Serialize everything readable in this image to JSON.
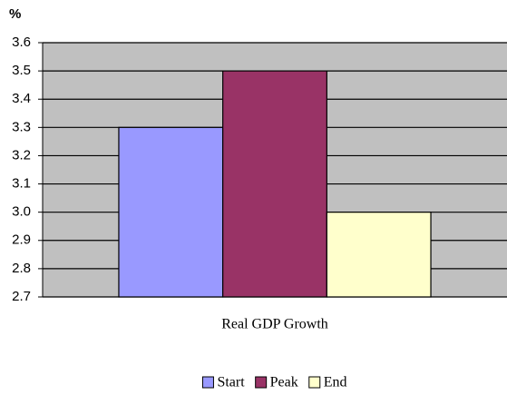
{
  "chart_data": {
    "type": "bar",
    "y_label": "%",
    "x_label": "Real GDP Growth",
    "categories": [
      "Real GDP Growth"
    ],
    "series": [
      {
        "name": "Start",
        "color": "#9999ff",
        "values": [
          3.3
        ]
      },
      {
        "name": "Peak",
        "color": "#993366",
        "values": [
          3.5
        ]
      },
      {
        "name": "End",
        "color": "#ffffcc",
        "values": [
          3.0
        ]
      }
    ],
    "ylim": [
      2.7,
      3.6
    ],
    "yticks": [
      2.7,
      2.8,
      2.9,
      {
        "value": 3.0,
        "label": "3.0"
      },
      3.1,
      3.2,
      3.3,
      3.4,
      3.5,
      3.6
    ],
    "grid": true,
    "legend": "bottom"
  }
}
